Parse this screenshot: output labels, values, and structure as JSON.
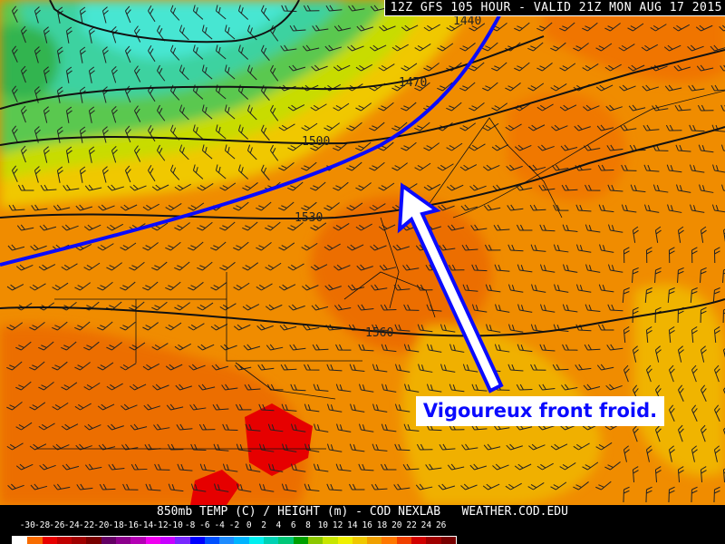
{
  "header": {
    "title": "12Z GFS 105 HOUR - VALID 21Z MON AUG 17 2015"
  },
  "legend": {
    "title": "850mb TEMP (C) / HEIGHT (m) - COD NEXLAB   WEATHER.COD.EDU",
    "ticks": [
      "-30",
      "-28",
      "-26",
      "-24",
      "-22",
      "-20",
      "-18",
      "-16",
      "-14",
      "-12",
      "-10",
      "-8",
      "-6",
      "-4",
      "-2",
      "0",
      "2",
      "4",
      "6",
      "8",
      "10",
      "12",
      "14",
      "16",
      "18",
      "20",
      "22",
      "24",
      "26"
    ],
    "colors": [
      "#ffffff",
      "#f86c00",
      "#e80000",
      "#c00000",
      "#a00000",
      "#780000",
      "#640064",
      "#8c008c",
      "#b400b4",
      "#f000f0",
      "#c800ff",
      "#7828ff",
      "#0000ff",
      "#0050ff",
      "#1e8cff",
      "#00b4ff",
      "#00f0f0",
      "#00d2b4",
      "#00c878",
      "#00a000",
      "#8cc800",
      "#c8e600",
      "#f0f000",
      "#f0c800",
      "#f0a000",
      "#ff7800",
      "#f04000",
      "#d20000",
      "#a00000",
      "#780000"
    ]
  },
  "contours": {
    "labels": [
      "1440",
      "1470",
      "1500",
      "1530",
      "1560"
    ]
  },
  "annotation": {
    "callout": "Vigoureux front froid.",
    "front_color": "#0a0aff",
    "arrow_color": "#ffffff"
  }
}
